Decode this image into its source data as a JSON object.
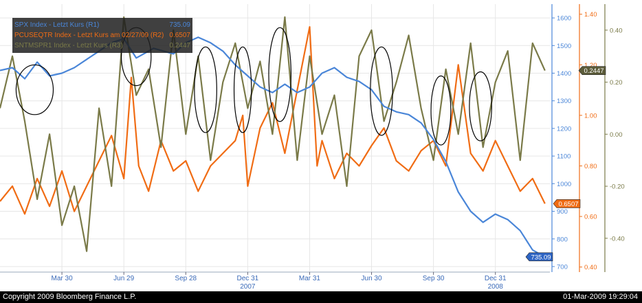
{
  "chart_data": {
    "type": "line",
    "legend": {
      "placement": "top-left",
      "entries": [
        {
          "text": "SPX Index - Letzt Kurs (R1)",
          "value": "735.09",
          "color": "#4a86d8"
        },
        {
          "text": "PCUSEQTR Index - Letzt Kurs am 02/27/09 (R2)",
          "value": "0.6507",
          "color": "#f06c14"
        },
        {
          "text": "SNTMSPR1 Index - Letzt Kurs (R3)",
          "value": "0.2447",
          "color": "#7a7a48"
        }
      ]
    },
    "x_ticks": [
      {
        "label": "Mar 30",
        "t": 0.25
      },
      {
        "label": "Jun 29",
        "t": 0.5
      },
      {
        "label": "Sep 28",
        "t": 0.75
      },
      {
        "label": "Dec 31",
        "t": 1.0
      },
      {
        "label": "Mar 31",
        "t": 1.25
      },
      {
        "label": "Jun 30",
        "t": 1.5
      },
      {
        "label": "Sep 30",
        "t": 1.75
      },
      {
        "label": "Dec 31",
        "t": 2.0
      }
    ],
    "x_year_labels": [
      {
        "label": "2007",
        "t": 1.0
      },
      {
        "label": "2008",
        "t": 2.0
      }
    ],
    "x_range": [
      0.0,
      2.22
    ],
    "axes": [
      {
        "id": "r1",
        "series": "SPX Index",
        "color": "#4a86d8",
        "range": [
          680,
          1650
        ],
        "ticks": [
          700,
          800,
          900,
          1000,
          1100,
          1200,
          1300,
          1400,
          1500,
          1600
        ]
      },
      {
        "id": "r2",
        "series": "PCUSEQTR Index",
        "color": "#f06c14",
        "range": [
          0.38,
          1.44
        ],
        "ticks": [
          "0.40",
          "0.60",
          "0.80",
          "1.00",
          "1.20",
          "1.40"
        ]
      },
      {
        "id": "r3",
        "series": "SNTMSPR1 Index",
        "color": "#7a7a48",
        "range": [
          -0.53,
          0.5
        ],
        "ticks": [
          "-0.40",
          "-0.20",
          "0.00",
          "0.20",
          "0.40"
        ]
      }
    ],
    "last_value_badges": [
      {
        "axis": "r1",
        "text": "735.09",
        "value": 735.09
      },
      {
        "axis": "r2",
        "text": "0.6507",
        "value": 0.6507
      },
      {
        "axis": "r3",
        "text": "0.2447",
        "value": 0.2447
      }
    ],
    "series": [
      {
        "name": "SPX Index",
        "axis": "r1",
        "color": "#4a86d8",
        "points": [
          [
            0.0,
            1410
          ],
          [
            0.05,
            1420
          ],
          [
            0.1,
            1380
          ],
          [
            0.15,
            1440
          ],
          [
            0.2,
            1390
          ],
          [
            0.25,
            1400
          ],
          [
            0.3,
            1420
          ],
          [
            0.35,
            1450
          ],
          [
            0.4,
            1480
          ],
          [
            0.45,
            1510
          ],
          [
            0.5,
            1525
          ],
          [
            0.55,
            1455
          ],
          [
            0.58,
            1470
          ],
          [
            0.62,
            1490
          ],
          [
            0.7,
            1470
          ],
          [
            0.75,
            1510
          ],
          [
            0.8,
            1530
          ],
          [
            0.85,
            1510
          ],
          [
            0.9,
            1480
          ],
          [
            0.95,
            1430
          ],
          [
            1.0,
            1390
          ],
          [
            1.05,
            1350
          ],
          [
            1.1,
            1330
          ],
          [
            1.15,
            1360
          ],
          [
            1.2,
            1330
          ],
          [
            1.25,
            1350
          ],
          [
            1.3,
            1400
          ],
          [
            1.35,
            1420
          ],
          [
            1.4,
            1385
          ],
          [
            1.45,
            1370
          ],
          [
            1.5,
            1340
          ],
          [
            1.55,
            1280
          ],
          [
            1.6,
            1260
          ],
          [
            1.65,
            1250
          ],
          [
            1.7,
            1220
          ],
          [
            1.75,
            1160
          ],
          [
            1.8,
            1080
          ],
          [
            1.85,
            970
          ],
          [
            1.9,
            900
          ],
          [
            1.95,
            860
          ],
          [
            2.0,
            890
          ],
          [
            2.05,
            870
          ],
          [
            2.1,
            830
          ],
          [
            2.15,
            760
          ],
          [
            2.2,
            735.09
          ]
        ]
      },
      {
        "name": "PCUSEQTR Index",
        "axis": "r2",
        "color": "#f06c14",
        "points": [
          [
            0.0,
            0.66
          ],
          [
            0.05,
            0.72
          ],
          [
            0.1,
            0.61
          ],
          [
            0.15,
            0.75
          ],
          [
            0.2,
            0.64
          ],
          [
            0.25,
            0.78
          ],
          [
            0.3,
            0.62
          ],
          [
            0.35,
            0.72
          ],
          [
            0.4,
            0.82
          ],
          [
            0.45,
            0.92
          ],
          [
            0.5,
            0.75
          ],
          [
            0.53,
            1.15
          ],
          [
            0.56,
            0.8
          ],
          [
            0.6,
            0.7
          ],
          [
            0.65,
            0.9
          ],
          [
            0.7,
            0.78
          ],
          [
            0.75,
            0.82
          ],
          [
            0.8,
            0.7
          ],
          [
            0.85,
            0.8
          ],
          [
            0.9,
            0.85
          ],
          [
            0.95,
            0.9
          ],
          [
            0.98,
            1.0
          ],
          [
            1.0,
            0.72
          ],
          [
            1.05,
            0.95
          ],
          [
            1.1,
            1.05
          ],
          [
            1.15,
            0.85
          ],
          [
            1.2,
            1.1
          ],
          [
            1.25,
            1.35
          ],
          [
            1.28,
            0.8
          ],
          [
            1.3,
            0.9
          ],
          [
            1.35,
            0.75
          ],
          [
            1.4,
            0.85
          ],
          [
            1.45,
            0.8
          ],
          [
            1.5,
            0.88
          ],
          [
            1.55,
            0.95
          ],
          [
            1.6,
            0.82
          ],
          [
            1.65,
            0.78
          ],
          [
            1.7,
            0.86
          ],
          [
            1.75,
            0.9
          ],
          [
            1.8,
            0.8
          ],
          [
            1.85,
            1.2
          ],
          [
            1.9,
            0.85
          ],
          [
            1.95,
            0.78
          ],
          [
            2.0,
            0.9
          ],
          [
            2.05,
            0.8
          ],
          [
            2.1,
            0.7
          ],
          [
            2.15,
            0.75
          ],
          [
            2.2,
            0.6507
          ]
        ]
      },
      {
        "name": "SNTMSPR1 Index",
        "axis": "r3",
        "color": "#7a7a48",
        "points": [
          [
            0.0,
            0.1
          ],
          [
            0.05,
            0.3
          ],
          [
            0.1,
            0.05
          ],
          [
            0.15,
            -0.25
          ],
          [
            0.2,
            0.0
          ],
          [
            0.25,
            -0.35
          ],
          [
            0.3,
            -0.2
          ],
          [
            0.35,
            -0.45
          ],
          [
            0.4,
            0.1
          ],
          [
            0.45,
            -0.2
          ],
          [
            0.5,
            0.45
          ],
          [
            0.55,
            0.15
          ],
          [
            0.6,
            0.25
          ],
          [
            0.65,
            -0.05
          ],
          [
            0.7,
            0.4
          ],
          [
            0.75,
            0.0
          ],
          [
            0.8,
            0.3
          ],
          [
            0.85,
            -0.1
          ],
          [
            0.9,
            0.2
          ],
          [
            0.95,
            0.35
          ],
          [
            1.0,
            0.1
          ],
          [
            1.05,
            0.28
          ],
          [
            1.1,
            0.0
          ],
          [
            1.15,
            0.45
          ],
          [
            1.2,
            -0.1
          ],
          [
            1.25,
            0.3
          ],
          [
            1.3,
            0.0
          ],
          [
            1.35,
            0.15
          ],
          [
            1.4,
            -0.2
          ],
          [
            1.45,
            0.3
          ],
          [
            1.5,
            0.4
          ],
          [
            1.55,
            0.05
          ],
          [
            1.6,
            0.2
          ],
          [
            1.65,
            0.38
          ],
          [
            1.7,
            0.1
          ],
          [
            1.75,
            -0.1
          ],
          [
            1.8,
            0.25
          ],
          [
            1.85,
            0.0
          ],
          [
            1.9,
            0.35
          ],
          [
            1.95,
            -0.05
          ],
          [
            2.0,
            0.2
          ],
          [
            2.05,
            0.32
          ],
          [
            2.1,
            -0.1
          ],
          [
            2.15,
            0.35
          ],
          [
            2.2,
            0.2447
          ]
        ]
      }
    ],
    "annotations": [
      {
        "shape": "ellipse",
        "t": 0.14,
        "v_r1": 1340,
        "rt": 0.075,
        "rv_r1": 90
      },
      {
        "shape": "ellipse",
        "t": 0.55,
        "v_r1": 1460,
        "rt": 0.06,
        "rv_r1": 105
      },
      {
        "shape": "ellipse",
        "t": 0.83,
        "v_r1": 1340,
        "rt": 0.045,
        "rv_r1": 155
      },
      {
        "shape": "ellipse",
        "t": 0.98,
        "v_r1": 1340,
        "rt": 0.035,
        "rv_r1": 155
      },
      {
        "shape": "ellipse",
        "t": 1.13,
        "v_r1": 1395,
        "rt": 0.045,
        "rv_r1": 170
      },
      {
        "shape": "ellipse",
        "t": 1.54,
        "v_r1": 1335,
        "rt": 0.045,
        "rv_r1": 160
      },
      {
        "shape": "ellipse",
        "t": 1.78,
        "v_r1": 1265,
        "rt": 0.04,
        "rv_r1": 125
      },
      {
        "shape": "ellipse",
        "t": 1.94,
        "v_r1": 1280,
        "rt": 0.045,
        "rv_r1": 125
      }
    ]
  },
  "footer": {
    "copyright": "Copyright 2009 Bloomberg Finance L.P.",
    "timestamp": "01-Mar-2009 19:29:04"
  }
}
